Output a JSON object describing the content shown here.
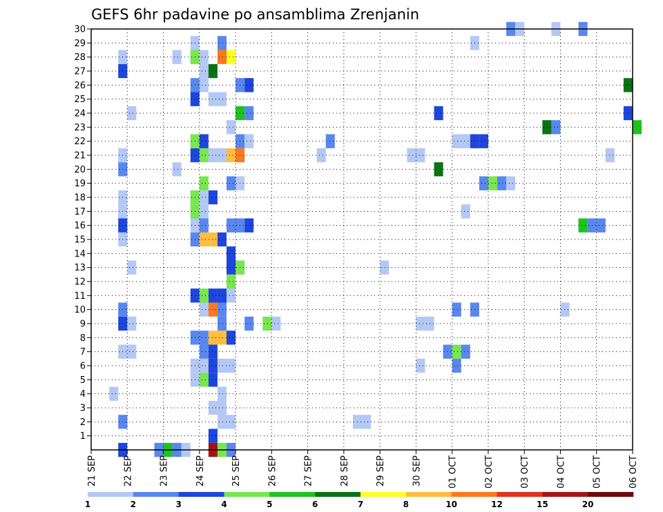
{
  "chart_data": {
    "type": "heatmap",
    "title": "GEFS 6hr padavine po ansamblima Zrenjanin",
    "xlabel": "",
    "ylabel": "",
    "x_tick_labels": [
      "21 SEP",
      "22 SEP",
      "23 SEP",
      "24 SEP",
      "25 SEP",
      "26 SEP",
      "27 SEP",
      "28 SEP",
      "29 SEP",
      "30 SEP",
      "01 OCT",
      "02 OCT",
      "03 OCT",
      "04 OCT",
      "05 OCT",
      "06 OCT"
    ],
    "y_tick_labels": [
      "1",
      "2",
      "3",
      "4",
      "5",
      "6",
      "7",
      "8",
      "9",
      "10",
      "11",
      "12",
      "13",
      "14",
      "15",
      "16",
      "17",
      "18",
      "19",
      "20",
      "21",
      "22",
      "23",
      "24",
      "25",
      "26",
      "27",
      "28",
      "29",
      "30"
    ],
    "time_steps_per_day": 4,
    "xlim_steps": [
      0,
      60
    ],
    "ylim_members": [
      0,
      30
    ],
    "grid": "dotted",
    "legend": {
      "placement": "bottom",
      "boundaries": [
        "1",
        "2",
        "3",
        "4",
        "5",
        "6",
        "7",
        "8",
        "10",
        "12",
        "15",
        "20"
      ],
      "colors": [
        "#b4c8f5",
        "#5a87ee",
        "#1e46dc",
        "#78e650",
        "#1ec31e",
        "#0a7314",
        "#ffff28",
        "#ffbe3c",
        "#ff781e",
        "#e1321e",
        "#a51414",
        "#6e0a0a"
      ]
    },
    "cells": [
      [
        3,
        0,
        3
      ],
      [
        7,
        0,
        2
      ],
      [
        8,
        0,
        5
      ],
      [
        9,
        0,
        2
      ],
      [
        13,
        0,
        11
      ],
      [
        14,
        0,
        4
      ],
      [
        15,
        0,
        2
      ],
      [
        10,
        0,
        1
      ],
      [
        13,
        1,
        3
      ],
      [
        3,
        2,
        2
      ],
      [
        14,
        2,
        1
      ],
      [
        15,
        2,
        1
      ],
      [
        29,
        2,
        1
      ],
      [
        30,
        2,
        1
      ],
      [
        13,
        3,
        1
      ],
      [
        14,
        3,
        1
      ],
      [
        2,
        4,
        1
      ],
      [
        14,
        4,
        1
      ],
      [
        11,
        5,
        1
      ],
      [
        12,
        5,
        4
      ],
      [
        13,
        5,
        3
      ],
      [
        11,
        6,
        1
      ],
      [
        12,
        6,
        1
      ],
      [
        13,
        6,
        3
      ],
      [
        14,
        6,
        1
      ],
      [
        15,
        6,
        1
      ],
      [
        36,
        6,
        1
      ],
      [
        40,
        6,
        2
      ],
      [
        3,
        7,
        1
      ],
      [
        4,
        7,
        1
      ],
      [
        12,
        7,
        2
      ],
      [
        13,
        7,
        3
      ],
      [
        39,
        7,
        2
      ],
      [
        40,
        7,
        4
      ],
      [
        41,
        7,
        2
      ],
      [
        11,
        8,
        2
      ],
      [
        12,
        8,
        2
      ],
      [
        13,
        8,
        8
      ],
      [
        14,
        8,
        8
      ],
      [
        15,
        8,
        3
      ],
      [
        3,
        9,
        3
      ],
      [
        4,
        9,
        1
      ],
      [
        14,
        9,
        2
      ],
      [
        17,
        9,
        2
      ],
      [
        19,
        9,
        4
      ],
      [
        20,
        9,
        1
      ],
      [
        36,
        9,
        1
      ],
      [
        37,
        9,
        1
      ],
      [
        3,
        10,
        2
      ],
      [
        12,
        10,
        1
      ],
      [
        13,
        10,
        9
      ],
      [
        14,
        10,
        2
      ],
      [
        40,
        10,
        2
      ],
      [
        42,
        10,
        2
      ],
      [
        52,
        10,
        1
      ],
      [
        11,
        11,
        3
      ],
      [
        12,
        11,
        4
      ],
      [
        13,
        11,
        3
      ],
      [
        14,
        11,
        3
      ],
      [
        15,
        11,
        1
      ],
      [
        15,
        12,
        4
      ],
      [
        4,
        13,
        1
      ],
      [
        15,
        13,
        3
      ],
      [
        16,
        13,
        4
      ],
      [
        32,
        13,
        1
      ],
      [
        15,
        14,
        3
      ],
      [
        3,
        15,
        1
      ],
      [
        11,
        15,
        2
      ],
      [
        12,
        15,
        8
      ],
      [
        13,
        15,
        8
      ],
      [
        14,
        15,
        3
      ],
      [
        3,
        16,
        3
      ],
      [
        11,
        16,
        1
      ],
      [
        12,
        16,
        2
      ],
      [
        15,
        16,
        2
      ],
      [
        16,
        16,
        2
      ],
      [
        17,
        16,
        3
      ],
      [
        54,
        16,
        5
      ],
      [
        55,
        16,
        2
      ],
      [
        56,
        16,
        2
      ],
      [
        3,
        17,
        1
      ],
      [
        11,
        17,
        4
      ],
      [
        12,
        17,
        1
      ],
      [
        41,
        17,
        1
      ],
      [
        3,
        18,
        1
      ],
      [
        11,
        18,
        4
      ],
      [
        12,
        18,
        1
      ],
      [
        13,
        18,
        3
      ],
      [
        12,
        19,
        4
      ],
      [
        15,
        19,
        2
      ],
      [
        16,
        19,
        1
      ],
      [
        43,
        19,
        2
      ],
      [
        44,
        19,
        4
      ],
      [
        45,
        19,
        2
      ],
      [
        46,
        19,
        1
      ],
      [
        3,
        20,
        2
      ],
      [
        9,
        20,
        1
      ],
      [
        38,
        20,
        6
      ],
      [
        3,
        21,
        1
      ],
      [
        11,
        21,
        3
      ],
      [
        12,
        21,
        4
      ],
      [
        13,
        21,
        1
      ],
      [
        14,
        21,
        1
      ],
      [
        15,
        21,
        8
      ],
      [
        16,
        21,
        9
      ],
      [
        25,
        21,
        1
      ],
      [
        35,
        21,
        1
      ],
      [
        36,
        21,
        1
      ],
      [
        57,
        21,
        1
      ],
      [
        11,
        22,
        4
      ],
      [
        12,
        22,
        3
      ],
      [
        16,
        22,
        2
      ],
      [
        17,
        22,
        1
      ],
      [
        26,
        22,
        2
      ],
      [
        40,
        22,
        1
      ],
      [
        41,
        22,
        1
      ],
      [
        42,
        22,
        3
      ],
      [
        43,
        22,
        3
      ],
      [
        15,
        23,
        1
      ],
      [
        50,
        23,
        6
      ],
      [
        51,
        23,
        2
      ],
      [
        60,
        23,
        5
      ],
      [
        4,
        24,
        1
      ],
      [
        16,
        24,
        5
      ],
      [
        17,
        24,
        2
      ],
      [
        38,
        24,
        3
      ],
      [
        59,
        24,
        3
      ],
      [
        11,
        25,
        3
      ],
      [
        13,
        25,
        1
      ],
      [
        14,
        25,
        1
      ],
      [
        11,
        26,
        2
      ],
      [
        12,
        26,
        1
      ],
      [
        16,
        26,
        2
      ],
      [
        17,
        26,
        3
      ],
      [
        59,
        26,
        6
      ],
      [
        3,
        27,
        3
      ],
      [
        12,
        27,
        1
      ],
      [
        13,
        27,
        6
      ],
      [
        3,
        28,
        1
      ],
      [
        9,
        28,
        1
      ],
      [
        11,
        28,
        4
      ],
      [
        12,
        28,
        1
      ],
      [
        14,
        28,
        9
      ],
      [
        15,
        28,
        7
      ],
      [
        11,
        29,
        1
      ],
      [
        14,
        29,
        2
      ],
      [
        42,
        29,
        1
      ],
      [
        46,
        30,
        2
      ],
      [
        47,
        30,
        1
      ],
      [
        51,
        30,
        1
      ],
      [
        54,
        30,
        2
      ]
    ]
  }
}
